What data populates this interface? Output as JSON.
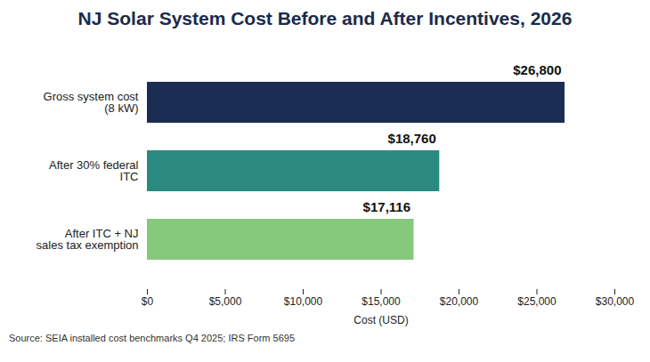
{
  "chart_data": {
    "type": "bar",
    "orientation": "horizontal",
    "title": "NJ Solar System Cost Before and After Incentives, 2026",
    "categories": [
      "Gross system cost (8 kW)",
      "After 30% federal ITC",
      "After ITC + NJ sales tax exemption"
    ],
    "values": [
      26800,
      18760,
      17116
    ],
    "value_labels": [
      "$26,800",
      "$18,760",
      "$17,116"
    ],
    "data_labels": true,
    "colors": [
      "#1b2d52",
      "#2a8a80",
      "#86c97c"
    ],
    "xlabel": "Cost (USD)",
    "xlim": [
      0,
      30000
    ],
    "xticks": [
      {
        "value": 0,
        "label": "$0"
      },
      {
        "value": 5000,
        "label": "$5,000"
      },
      {
        "value": 10000,
        "label": "$10,000"
      },
      {
        "value": 15000,
        "label": "$15,000"
      },
      {
        "value": 20000,
        "label": "$20,000"
      },
      {
        "value": 25000,
        "label": "$25,000"
      },
      {
        "value": 30000,
        "label": "$30,000"
      }
    ],
    "grid": false,
    "source": "Source: SEIA installed cost benchmarks Q4 2025; IRS Form 5695"
  }
}
